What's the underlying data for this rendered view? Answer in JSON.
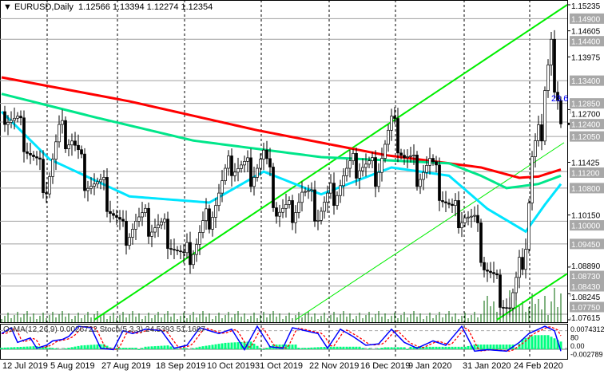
{
  "header": {
    "arrow": "▼",
    "symbol": "EURUSD,Daily",
    "ohlc": "1.12566 1.13394 1.12274 1.12354"
  },
  "indicator": {
    "label": "OsMA(12,26,9) 0.0026722  Stoch(5,3,3) 24.5393 51.1687",
    "axis_top": "0.0074312",
    "axis_bottom": "-0.002789",
    "stoch_top": "80",
    "stoch_bottom": "0.00"
  },
  "chart_data": {
    "type": "candlestick",
    "symbol": "EURUSD",
    "timeframe": "Daily",
    "ylim": [
      1.07615,
      1.15235
    ],
    "y_ticks": [
      "1.15235",
      "1.14605",
      "1.13975",
      "1.12700",
      "1.11425",
      "1.10150",
      "1.08890",
      "1.08245",
      "1.07615"
    ],
    "levels": [
      "1.14900",
      "1.14400",
      "1.13400",
      "1.12850",
      "1.12400",
      "1.12050",
      "1.11200",
      "1.10800",
      "1.10000",
      "1.09450",
      "1.08730",
      "1.08430",
      "1.07750"
    ],
    "current_price": 1.12354,
    "fib_label": "23.6",
    "x_labels": [
      "12 Jul 2019",
      "5 Aug 2019",
      "27 Aug 2019",
      "18 Sep 2019",
      "10 Oct 2019",
      "31 Oct 2019",
      "22 Nov 2019",
      "16 Dec 2019",
      "9 Jan 2020",
      "31 Jan 2020",
      "24 Feb 2020"
    ],
    "x_label_bars": [
      1,
      16,
      32,
      49,
      65,
      80,
      97,
      113,
      128,
      145,
      161
    ],
    "close_path": [
      [
        0,
        1.1265
      ],
      [
        5,
        1.123
      ],
      [
        10,
        1.115
      ],
      [
        14,
        1.109
      ],
      [
        18,
        1.121
      ],
      [
        22,
        1.12
      ],
      [
        26,
        1.111
      ],
      [
        32,
        1.107
      ],
      [
        38,
        1.097
      ],
      [
        42,
        1.1
      ],
      [
        48,
        1.099
      ],
      [
        52,
        1.097
      ],
      [
        57,
        1.09
      ],
      [
        61,
        1.095
      ],
      [
        67,
        1.105
      ],
      [
        72,
        1.114
      ],
      [
        78,
        1.112
      ],
      [
        82,
        1.116
      ],
      [
        86,
        1.103
      ],
      [
        90,
        1.102
      ],
      [
        94,
        1.107
      ],
      [
        99,
        1.102
      ],
      [
        102,
        1.105
      ],
      [
        107,
        1.111
      ],
      [
        112,
        1.114
      ],
      [
        117,
        1.112
      ],
      [
        122,
        1.123
      ],
      [
        126,
        1.116
      ],
      [
        130,
        1.112
      ],
      [
        134,
        1.114
      ],
      [
        137,
        1.108
      ],
      [
        141,
        1.102
      ],
      [
        145,
        1.102
      ],
      [
        148,
        1.099
      ],
      [
        151,
        1.09
      ],
      [
        155,
        1.084
      ],
      [
        159,
        1.079
      ],
      [
        161,
        1.084
      ],
      [
        164,
        1.095
      ],
      [
        166,
        1.115
      ],
      [
        169,
        1.123
      ],
      [
        170,
        1.134
      ],
      [
        172,
        1.144
      ],
      [
        173,
        1.13
      ],
      [
        175,
        1.1235
      ]
    ],
    "ma_200": [
      [
        0,
        1.1348
      ],
      [
        40,
        1.129
      ],
      [
        80,
        1.122
      ],
      [
        120,
        1.116
      ],
      [
        150,
        1.113
      ],
      [
        162,
        1.1105
      ],
      [
        168,
        1.1108
      ],
      [
        175,
        1.1125
      ]
    ],
    "ma_100": [
      [
        0,
        1.1308
      ],
      [
        30,
        1.125
      ],
      [
        60,
        1.1195
      ],
      [
        100,
        1.1155
      ],
      [
        140,
        1.114
      ],
      [
        150,
        1.111
      ],
      [
        158,
        1.108
      ],
      [
        168,
        1.109
      ],
      [
        175,
        1.111
      ]
    ],
    "ma_50": [
      [
        0,
        1.1265
      ],
      [
        15,
        1.115
      ],
      [
        40,
        1.106
      ],
      [
        65,
        1.1045
      ],
      [
        82,
        1.112
      ],
      [
        100,
        1.1065
      ],
      [
        122,
        1.113
      ],
      [
        140,
        1.111
      ],
      [
        152,
        1.103
      ],
      [
        164,
        1.0975
      ],
      [
        170,
        1.104
      ],
      [
        175,
        1.109
      ]
    ],
    "channel": [
      {
        "from": [
          29,
          1.07615
        ],
        "to": [
          177,
          1.15235
        ]
      },
      {
        "from": [
          92,
          1.07615
        ],
        "to": [
          176,
          1.119
        ]
      },
      {
        "from": [
          155,
          1.07615
        ],
        "to": [
          177,
          1.0873
        ]
      }
    ],
    "stoch": [
      [
        0,
        70
      ],
      [
        3,
        90
      ],
      [
        5,
        40
      ],
      [
        9,
        55
      ],
      [
        11,
        20
      ],
      [
        14,
        30
      ],
      [
        16,
        45
      ],
      [
        19,
        50
      ],
      [
        21,
        60
      ],
      [
        24,
        95
      ],
      [
        28,
        90
      ],
      [
        31,
        20
      ],
      [
        35,
        15
      ],
      [
        38,
        80
      ],
      [
        41,
        70
      ],
      [
        45,
        85
      ],
      [
        50,
        80
      ],
      [
        54,
        20
      ],
      [
        58,
        30
      ],
      [
        62,
        90
      ],
      [
        68,
        70
      ],
      [
        72,
        85
      ],
      [
        76,
        15
      ],
      [
        80,
        95
      ],
      [
        84,
        25
      ],
      [
        88,
        20
      ],
      [
        91,
        90
      ],
      [
        95,
        80
      ],
      [
        99,
        70
      ],
      [
        102,
        20
      ],
      [
        106,
        85
      ],
      [
        110,
        60
      ],
      [
        114,
        30
      ],
      [
        118,
        35
      ],
      [
        122,
        85
      ],
      [
        126,
        40
      ],
      [
        130,
        20
      ],
      [
        135,
        45
      ],
      [
        139,
        30
      ],
      [
        144,
        95
      ],
      [
        148,
        10
      ],
      [
        152,
        15
      ],
      [
        158,
        10
      ],
      [
        162,
        40
      ],
      [
        165,
        70
      ],
      [
        170,
        95
      ],
      [
        173,
        80
      ],
      [
        175,
        10
      ]
    ],
    "osma": [
      [
        0,
        -0.0005
      ],
      [
        11,
        -0.001
      ],
      [
        17,
        -0.0003
      ],
      [
        25,
        0.0015
      ],
      [
        32,
        0.002
      ],
      [
        36,
        -0.0005
      ],
      [
        42,
        -0.0005
      ],
      [
        45,
        0.001
      ],
      [
        52,
        0.0015
      ],
      [
        57,
        -0.0005
      ],
      [
        62,
        0.001
      ],
      [
        70,
        0.0025
      ],
      [
        78,
        0.003
      ],
      [
        81,
        0.0005
      ],
      [
        85,
        -0.0015
      ],
      [
        92,
        -0.0015
      ],
      [
        94,
        0.0005
      ],
      [
        102,
        0.001
      ],
      [
        112,
        0.001
      ],
      [
        115,
        -0.0003
      ],
      [
        120,
        0.0008
      ],
      [
        126,
        0.0008
      ],
      [
        128,
        -0.0008
      ],
      [
        145,
        -0.0008
      ],
      [
        148,
        -0.0015
      ],
      [
        160,
        -0.0015
      ],
      [
        163,
        0.004
      ],
      [
        167,
        0.0055
      ],
      [
        171,
        0.0055
      ],
      [
        175,
        0.003
      ]
    ],
    "colors": {
      "bull": "#ffffff",
      "bear": "#000000",
      "ma_200": "#ff0000",
      "ma_100": "#00e68a",
      "ma_50": "#00e5ff",
      "channel": "#00ee00",
      "osma": "#00ff80",
      "stoch_main": "#0000ff",
      "stoch_signal": "#ff0000",
      "volume": "#006400"
    }
  }
}
